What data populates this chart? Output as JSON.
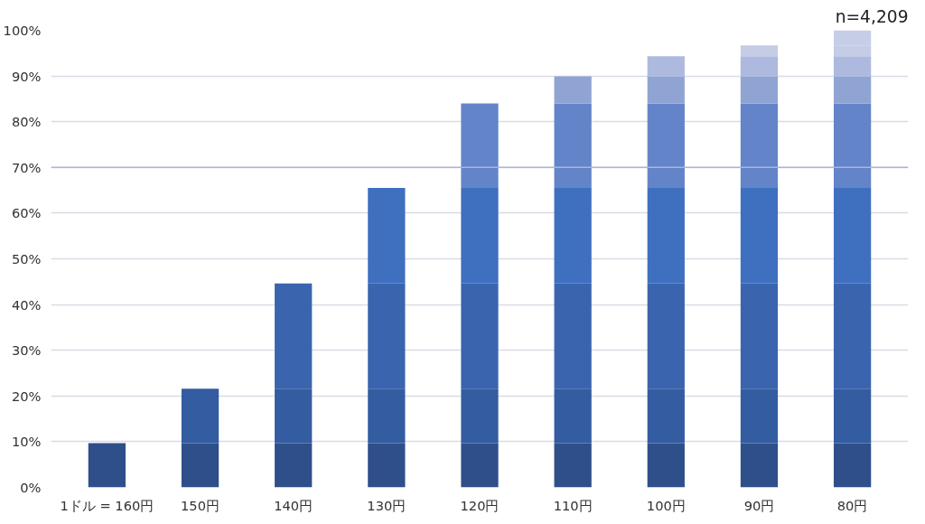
{
  "chart_data": {
    "type": "bar",
    "stacked": true,
    "categories": [
      "1ドル = 160円",
      "150円",
      "140円",
      "130円",
      "120円",
      "110円",
      "100円",
      "90円",
      "80円"
    ],
    "series": [
      {
        "color": "#2e4f8a",
        "values": [
          9.7,
          9.7,
          9.7,
          9.7,
          9.7,
          9.7,
          9.7,
          9.7,
          9.7
        ]
      },
      {
        "color": "#345ca0",
        "values": [
          null,
          11.9,
          11.9,
          11.9,
          11.9,
          11.9,
          11.9,
          11.9,
          11.9
        ]
      },
      {
        "color": "#3a65ae",
        "values": [
          null,
          null,
          23.0,
          23.0,
          23.0,
          23.0,
          23.0,
          23.0,
          23.0
        ]
      },
      {
        "color": "#3f6fbf",
        "values": [
          null,
          null,
          null,
          20.9,
          20.9,
          20.9,
          20.9,
          20.9,
          20.9
        ]
      },
      {
        "color": "#6384c8",
        "values": [
          null,
          null,
          null,
          null,
          18.5,
          18.5,
          18.5,
          18.5,
          18.5
        ]
      },
      {
        "color": "#90a4d4",
        "values": [
          null,
          null,
          null,
          null,
          null,
          5.9,
          5.9,
          5.9,
          5.9
        ]
      },
      {
        "color": "#adb9de",
        "values": [
          null,
          null,
          null,
          null,
          null,
          null,
          4.4,
          4.4,
          4.4
        ]
      },
      {
        "color": "#c4cce6",
        "values": [
          null,
          null,
          null,
          null,
          null,
          null,
          null,
          2.4,
          2.4
        ]
      },
      {
        "color": "#c6cee7",
        "values": [
          null,
          null,
          null,
          null,
          null,
          null,
          null,
          null,
          3.3
        ]
      }
    ],
    "ylim": [
      0,
      100
    ],
    "yticks": [
      {
        "value": 0,
        "label": "0%"
      },
      {
        "value": 10,
        "label": "10%"
      },
      {
        "value": 20,
        "label": "20%"
      },
      {
        "value": 30,
        "label": "30%"
      },
      {
        "value": 40,
        "label": "40%"
      },
      {
        "value": 50,
        "label": "50%"
      },
      {
        "value": 60,
        "label": "60%"
      },
      {
        "value": 70,
        "label": "70%"
      },
      {
        "value": 80,
        "label": "80%"
      },
      {
        "value": 90,
        "label": "90%"
      },
      {
        "value": 100,
        "label": "100%"
      }
    ],
    "grid": "y",
    "ref_lines": [
      {
        "axis": "y",
        "value": 70,
        "color": "#aab6da"
      }
    ],
    "annotations": [
      "n=4,209"
    ]
  }
}
